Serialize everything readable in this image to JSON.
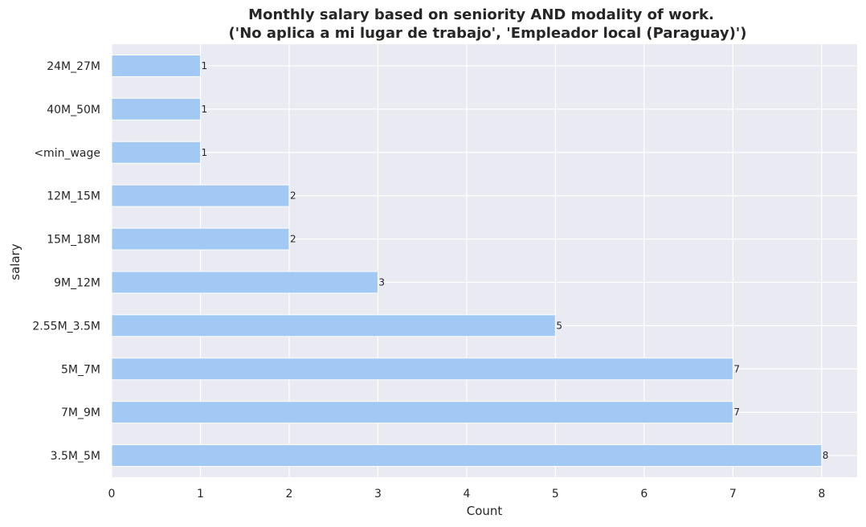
{
  "chart_data": {
    "type": "bar",
    "orientation": "horizontal",
    "title": "Monthly salary based on seniority AND modality of work.",
    "subtitle": "('No aplica a mi lugar de trabajo', 'Empleador local (Paraguay)')",
    "xlabel": "Count",
    "ylabel": "salary",
    "categories": [
      "24M_27M",
      "40M_50M",
      "<min_wage",
      "12M_15M",
      "15M_18M",
      "9M_12M",
      "2.55M_3.5M",
      "5M_7M",
      "7M_9M",
      "3.5M_5M"
    ],
    "values": [
      1,
      1,
      1,
      2,
      2,
      3,
      5,
      7,
      7,
      8
    ],
    "xlim": [
      0,
      8.4
    ],
    "xticks": [
      0,
      1,
      2,
      3,
      4,
      5,
      6,
      7,
      8
    ],
    "grid": true,
    "bar_color": "#a1c9f4",
    "background_color": "#eaeaf2",
    "grid_color": "#ffffff"
  }
}
